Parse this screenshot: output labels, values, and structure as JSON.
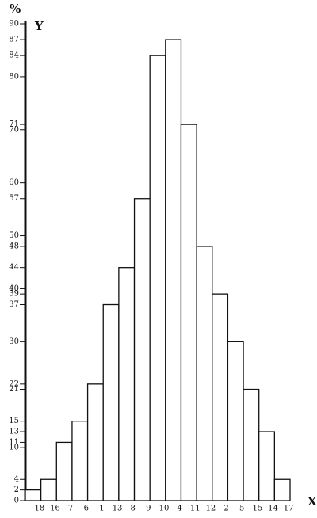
{
  "chart_data": {
    "type": "bar",
    "unit_label": "%",
    "y_label": "Y",
    "x_label": "X",
    "categories": [
      "18",
      "16",
      "7",
      "6",
      "1",
      "13",
      "8",
      "9",
      "10",
      "4",
      "11",
      "12",
      "2",
      "5",
      "15",
      "14",
      "17"
    ],
    "values": [
      2,
      4,
      11,
      15,
      22,
      37,
      44,
      57,
      84,
      87,
      71,
      48,
      39,
      30,
      21,
      13,
      4
    ],
    "color": "#ffffff",
    "edge_color": "#111111",
    "ylim": [
      0,
      90
    ],
    "yticks": [
      0,
      2,
      4,
      10,
      11,
      13,
      15,
      21,
      22,
      30,
      37,
      39,
      40,
      44,
      48,
      50,
      57,
      60,
      70,
      71,
      80,
      84,
      87,
      90
    ],
    "grid": false
  }
}
